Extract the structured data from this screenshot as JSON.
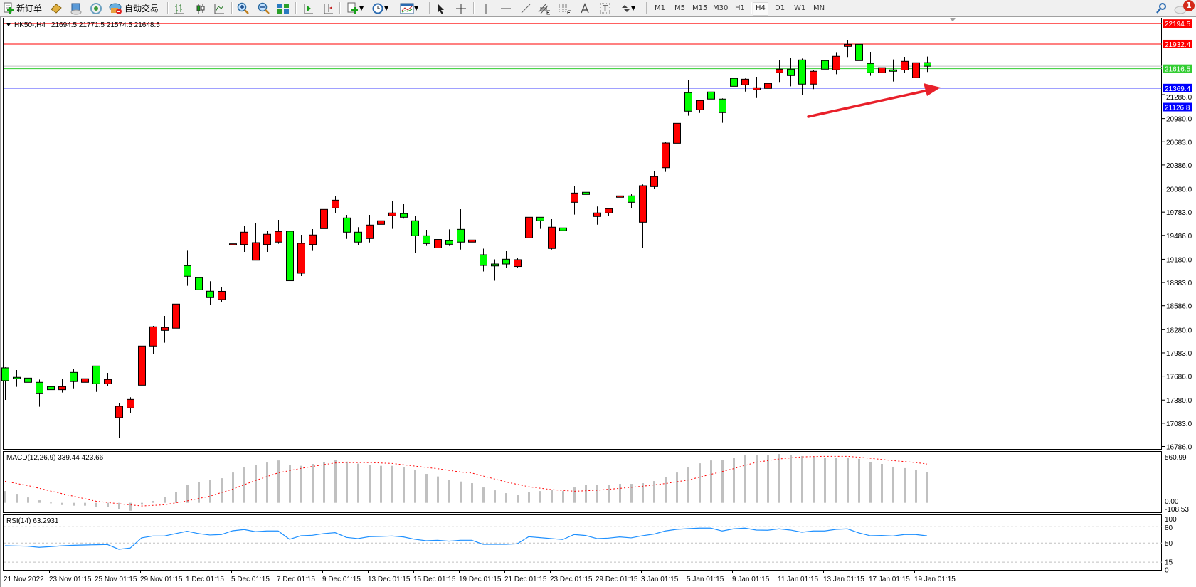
{
  "toolbar": {
    "new_order_label": "新订单",
    "auto_trading_label": "自动交易",
    "timeframes": [
      "M1",
      "M5",
      "M15",
      "M30",
      "H1",
      "H4",
      "D1",
      "W1",
      "MN"
    ],
    "active_timeframe": "H4",
    "notification_count": "1",
    "icons": [
      "new-order-icon",
      "market-watch-icon",
      "data-window-icon",
      "signals-icon",
      "auto-trading-icon",
      "bar-chart-icon",
      "candlestick-icon",
      "line-chart-icon",
      "zoom-in-icon",
      "zoom-out-icon",
      "tile-windows-icon",
      "auto-scroll-icon",
      "chart-shift-icon",
      "new-chart-icon",
      "clock-icon",
      "indicators-icon",
      "cursor-icon",
      "crosshair-icon",
      "vertical-line-icon",
      "horizontal-line-icon",
      "trendline-icon",
      "equidistant-channel-icon",
      "fibonacci-icon",
      "text-icon",
      "text-label-icon",
      "arrows-icon",
      "search-icon",
      "notification-icon"
    ]
  },
  "chart": {
    "symbol_timeframe": "HK50-,H4",
    "ohlc_readout": "21694.5 21771.5 21574.5 21648.5",
    "macd_label": "MACD(12,26,9) 339.44 423.66",
    "rsi_label": "RSI(14) 63.2931"
  },
  "chart_data": [
    {
      "type": "candlestick",
      "symbol": "HK50-",
      "timeframe": "H4",
      "colors": {
        "bull": "#ff0000",
        "bear": "#00ff00",
        "outline": "#000000"
      },
      "x_tick_labels": [
        "21 Nov 2022",
        "23 Nov 01:15",
        "25 Nov 01:15",
        "29 Nov 01:15",
        "1 Dec 01:15",
        "5 Dec 01:15",
        "7 Dec 01:15",
        "9 Dec 01:15",
        "13 Dec 01:15",
        "15 Dec 01:15",
        "19 Dec 01:15",
        "21 Dec 01:15",
        "23 Dec 01:15",
        "29 Dec 01:15",
        "3 Jan 01:15",
        "5 Jan 01:15",
        "9 Jan 01:15",
        "11 Jan 01:15",
        "13 Jan 01:15",
        "17 Jan 01:15",
        "19 Jan 01:15"
      ],
      "x_tick_every_bars": 4,
      "y_tick_labels": [
        "21286.0",
        "20980.0",
        "20683.0",
        "20386.0",
        "20080.0",
        "19783.0",
        "19486.0",
        "19180.0",
        "18883.0",
        "18586.0",
        "18280.0",
        "17983.0",
        "17686.0",
        "17380.0",
        "17083.0",
        "16786.0"
      ],
      "price_lines": [
        {
          "value": 22194.5,
          "label": "22194.5",
          "color": "#ff0000"
        },
        {
          "value": 21932.4,
          "label": "21932.4",
          "color": "#ff0000"
        },
        {
          "value": 21616.5,
          "label": "21616.5",
          "color": "#32cd32"
        },
        {
          "value": 21369.4,
          "label": "21369.4",
          "color": "#0000ff"
        },
        {
          "value": 21126.8,
          "label": "21126.8",
          "color": "#0000ff"
        }
      ],
      "bid_line": {
        "value": 21648.5,
        "color": "#c0c0c0"
      },
      "ohlc": [
        [
          17792,
          17800,
          17382,
          17628
        ],
        [
          17671,
          17764,
          17549,
          17653
        ],
        [
          17661,
          17773,
          17412,
          17607
        ],
        [
          17607,
          17643,
          17294,
          17461
        ],
        [
          17552,
          17628,
          17376,
          17513
        ],
        [
          17513,
          17655,
          17476,
          17552
        ],
        [
          17734,
          17773,
          17521,
          17617
        ],
        [
          17607,
          17701,
          17567,
          17653
        ],
        [
          17816,
          17816,
          17485,
          17588
        ],
        [
          17588,
          17728,
          17558,
          17643
        ],
        [
          17155,
          17346,
          16891,
          17300
        ],
        [
          17279,
          17416,
          17218,
          17388
        ],
        [
          17570,
          18083,
          17558,
          18071
        ],
        [
          18071,
          18329,
          17967,
          18317
        ],
        [
          18271,
          18456,
          18113,
          18308
        ],
        [
          18299,
          18717,
          18249,
          18608
        ],
        [
          19099,
          19290,
          18841,
          18963
        ],
        [
          18945,
          19045,
          18732,
          18790
        ],
        [
          18772,
          18899,
          18595,
          18690
        ],
        [
          18665,
          18820,
          18633,
          18770
        ],
        [
          19370,
          19457,
          19075,
          19378
        ],
        [
          19369,
          19602,
          19275,
          19527
        ],
        [
          19168,
          19639,
          19168,
          19393
        ],
        [
          19369,
          19539,
          19275,
          19500
        ],
        [
          19400,
          19684,
          19378,
          19536
        ],
        [
          19539,
          19803,
          18847,
          18906
        ],
        [
          19002,
          19493,
          18966,
          19384
        ],
        [
          19369,
          19566,
          19287,
          19491
        ],
        [
          19572,
          19866,
          19432,
          19818
        ],
        [
          19836,
          19985,
          19766,
          19936
        ],
        [
          19709,
          19748,
          19441,
          19527
        ],
        [
          19527,
          19591,
          19360,
          19400
        ],
        [
          19445,
          19748,
          19396,
          19618
        ],
        [
          19627,
          19721,
          19542,
          19673
        ],
        [
          19736,
          19921,
          19569,
          19773
        ],
        [
          19764,
          19885,
          19700,
          19718
        ],
        [
          19673,
          19730,
          19259,
          19481
        ],
        [
          19481,
          19557,
          19351,
          19381
        ],
        [
          19325,
          19675,
          19147,
          19434
        ],
        [
          19418,
          19563,
          19351,
          19372
        ],
        [
          19563,
          19821,
          19305,
          19400
        ],
        [
          19400,
          19445,
          19287,
          19427
        ],
        [
          19238,
          19316,
          19025,
          19102
        ],
        [
          19120,
          19179,
          18906,
          19095
        ],
        [
          19181,
          19284,
          19066,
          19120
        ],
        [
          19088,
          19202,
          19066,
          19175
        ],
        [
          19454,
          19766,
          19454,
          19718
        ],
        [
          19718,
          19718,
          19569,
          19673
        ],
        [
          19318,
          19693,
          19305,
          19591
        ],
        [
          19582,
          19693,
          19496,
          19546
        ],
        [
          19909,
          20121,
          19751,
          20027
        ],
        [
          20037,
          20046,
          19805,
          20009
        ],
        [
          19727,
          19855,
          19623,
          19773
        ],
        [
          19773,
          19836,
          19736,
          19827
        ],
        [
          19973,
          20176,
          19869,
          19991
        ],
        [
          19991,
          20012,
          19833,
          19909
        ],
        [
          19654,
          20137,
          19323,
          20121
        ],
        [
          20109,
          20303,
          20078,
          20237
        ],
        [
          20351,
          20676,
          20297,
          20667
        ],
        [
          20664,
          20949,
          20533,
          20919
        ],
        [
          21311,
          21468,
          21016,
          21074
        ],
        [
          21092,
          21220,
          21052,
          21210
        ],
        [
          21320,
          21368,
          21089,
          21229
        ],
        [
          21229,
          21238,
          20925,
          21056
        ],
        [
          21493,
          21559,
          21271,
          21392
        ],
        [
          21411,
          21493,
          21325,
          21483
        ],
        [
          21347,
          21514,
          21243,
          21374
        ],
        [
          21365,
          21468,
          21311,
          21429
        ],
        [
          21565,
          21732,
          21447,
          21611
        ],
        [
          21611,
          21750,
          21392,
          21529
        ],
        [
          21729,
          21747,
          21283,
          21420
        ],
        [
          21420,
          21602,
          21356,
          21584
        ],
        [
          21720,
          21729,
          21511,
          21611
        ],
        [
          21602,
          21829,
          21547,
          21775
        ],
        [
          21902,
          21987,
          21766,
          21929
        ],
        [
          21929,
          21935,
          21629,
          21720
        ],
        [
          21684,
          21832,
          21526,
          21565
        ],
        [
          21565,
          21630,
          21453,
          21630
        ],
        [
          21602,
          21735,
          21453,
          21584
        ],
        [
          21600,
          21768,
          21565,
          21711
        ],
        [
          21502,
          21750,
          21389,
          21693
        ],
        [
          21694.5,
          21771.5,
          21574.5,
          21648.5
        ]
      ]
    },
    {
      "type": "bar",
      "indicator": "MACD(12,26,9)",
      "y_tick_labels": [
        "560.99",
        "0.00",
        "-108.53"
      ],
      "colors": {
        "histogram": "#c0c0c0",
        "signal": "#ff0000"
      },
      "macd": [
        129,
        98,
        59,
        28,
        3,
        -24,
        -31,
        -31,
        -42,
        -44,
        -67,
        -86,
        -21,
        21,
        67,
        122,
        192,
        230,
        254,
        269,
        331,
        386,
        417,
        440,
        463,
        417,
        404,
        425,
        448,
        471,
        450,
        428,
        414,
        404,
        404,
        386,
        355,
        316,
        288,
        254,
        233,
        215,
        168,
        137,
        106,
        83,
        114,
        129,
        145,
        129,
        168,
        192,
        192,
        192,
        207,
        207,
        215,
        238,
        285,
        331,
        386,
        432,
        463,
        471,
        495,
        518,
        518,
        518,
        533,
        526,
        511,
        502,
        487,
        487,
        495,
        480,
        448,
        425,
        394,
        379,
        362,
        339.44
      ],
      "signal": [
        236,
        212,
        189,
        159,
        129,
        101,
        73,
        45,
        18,
        4,
        -10,
        -22,
        -34,
        -28,
        -21,
        0,
        21,
        47,
        73,
        112,
        150,
        197,
        244,
        286,
        327,
        352,
        376,
        397,
        417,
        435,
        440,
        440,
        440,
        435,
        430,
        416,
        401,
        387,
        373,
        355,
        337,
        326,
        293,
        261,
        228,
        202,
        176,
        160,
        145,
        136,
        127,
        132,
        137,
        148,
        158,
        170,
        181,
        196,
        210,
        230,
        249,
        280,
        311,
        342,
        373,
        408,
        443,
        461,
        479,
        491,
        502,
        505,
        508,
        508,
        508,
        498,
        487,
        474,
        461,
        451,
        440,
        423.66
      ]
    },
    {
      "type": "line",
      "indicator": "RSI(14)",
      "y_tick_labels": [
        "100",
        "80",
        "50",
        "15",
        "0"
      ],
      "levels": [
        80,
        50,
        15
      ],
      "colors": {
        "line": "#1e90ff",
        "levels": "#c0c0c0"
      },
      "values": [
        45.2,
        44.8,
        44.3,
        42.2,
        43.5,
        45,
        46,
        46.5,
        47,
        47.4,
        38.7,
        40.9,
        59.6,
        63,
        63,
        67.4,
        71.7,
        67.4,
        64.8,
        65.7,
        72.6,
        74.8,
        70.9,
        72.2,
        72.2,
        57,
        63.5,
        64.3,
        67.4,
        69.1,
        60.4,
        58.3,
        61.7,
        62.2,
        63,
        61.3,
        57,
        54.3,
        55.2,
        53.5,
        55.2,
        55.2,
        47.8,
        47.8,
        47.8,
        48.7,
        61.7,
        60,
        58.3,
        56.5,
        65.7,
        63.9,
        58.3,
        59.1,
        61.3,
        59.6,
        63.5,
        66.5,
        72.2,
        75.2,
        76.5,
        77.4,
        77.4,
        72.2,
        76.1,
        77.4,
        73.9,
        73.5,
        76.1,
        73.9,
        70,
        72.2,
        72.2,
        75.2,
        76.1,
        68.7,
        63.5,
        63.9,
        63,
        65.7,
        65.7,
        63.2931
      ]
    }
  ]
}
